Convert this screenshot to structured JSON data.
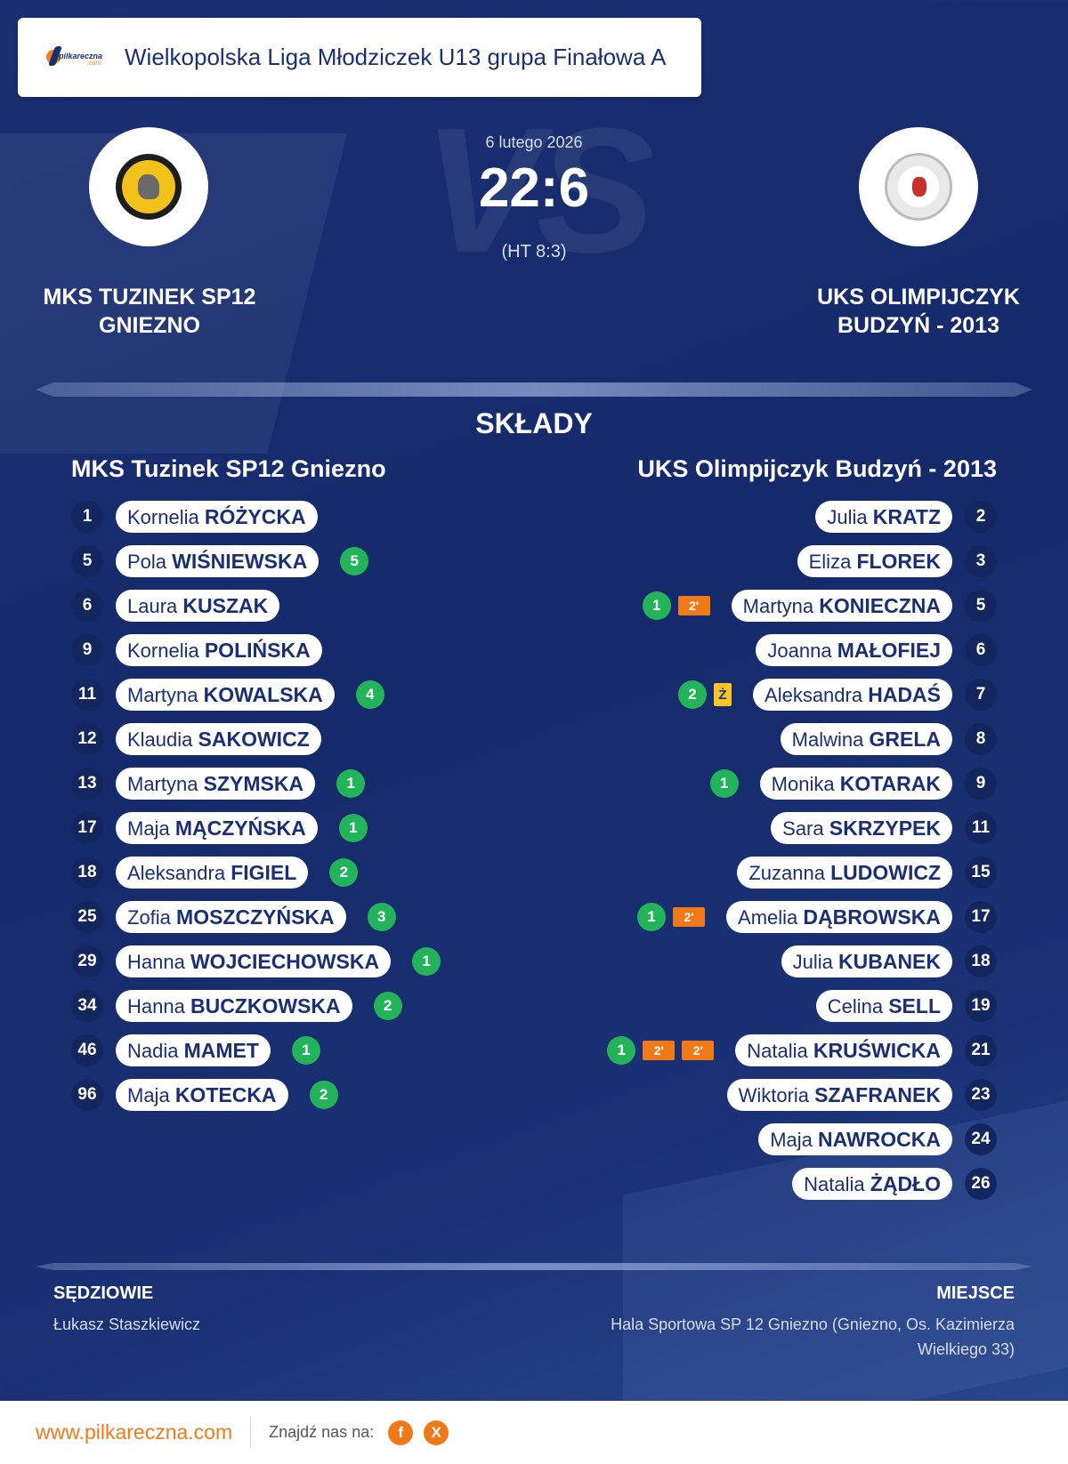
{
  "header": {
    "brand_name": "pilkareczna",
    "brand_domain": ".com",
    "league": "Wielkopolska Liga Młodziczek U13 grupa Finałowa A"
  },
  "match": {
    "date": "6 lutego 2026",
    "score": "22:6",
    "halftime": "(HT 8:3)",
    "watermark": "VS",
    "home_team": "MKS TUZINEK SP12\nGNIEZNO",
    "away_team": "UKS OLIMPIJCZYK\nBUDZYŃ - 2013"
  },
  "lineups": {
    "title": "SKŁADY",
    "home": {
      "name": "MKS Tuzinek SP12 Gniezno",
      "players": [
        {
          "number": "1",
          "first": "Kornelia",
          "last": "RÓŻYCKA",
          "goals": ""
        },
        {
          "number": "5",
          "first": "Pola",
          "last": "WIŚNIEWSKA",
          "goals": "5"
        },
        {
          "number": "6",
          "first": "Laura",
          "last": "KUSZAK",
          "goals": ""
        },
        {
          "number": "9",
          "first": "Kornelia",
          "last": "POLIŃSKA",
          "goals": ""
        },
        {
          "number": "11",
          "first": "Martyna",
          "last": "KOWALSKA",
          "goals": "4"
        },
        {
          "number": "12",
          "first": "Klaudia",
          "last": "SAKOWICZ",
          "goals": ""
        },
        {
          "number": "13",
          "first": "Martyna",
          "last": "SZYMSKA",
          "goals": "1"
        },
        {
          "number": "17",
          "first": "Maja",
          "last": "MĄCZYŃSKA",
          "goals": "1"
        },
        {
          "number": "18",
          "first": "Aleksandra",
          "last": "FIGIEL",
          "goals": "2"
        },
        {
          "number": "25",
          "first": "Zofia",
          "last": "MOSZCZYŃSKA",
          "goals": "3"
        },
        {
          "number": "29",
          "first": "Hanna",
          "last": "WOJCIECHOWSKA",
          "goals": "1"
        },
        {
          "number": "34",
          "first": "Hanna",
          "last": "BUCZKOWSKA",
          "goals": "2"
        },
        {
          "number": "46",
          "first": "Nadia",
          "last": "MAMET",
          "goals": "1"
        },
        {
          "number": "96",
          "first": "Maja",
          "last": "KOTECKA",
          "goals": "2"
        }
      ]
    },
    "away": {
      "name": "UKS Olimpijczyk Budzyń - 2013",
      "players": [
        {
          "number": "2",
          "first": "Julia",
          "last": "KRATZ",
          "goals": "",
          "cards": []
        },
        {
          "number": "3",
          "first": "Eliza",
          "last": "FLOREK",
          "goals": "",
          "cards": []
        },
        {
          "number": "5",
          "first": "Martyna",
          "last": "KONIECZNA",
          "goals": "1",
          "cards": [
            "2'"
          ]
        },
        {
          "number": "6",
          "first": "Joanna",
          "last": "MAŁOFIEJ",
          "goals": "",
          "cards": []
        },
        {
          "number": "7",
          "first": "Aleksandra",
          "last": "HADAŚ",
          "goals": "2",
          "cards": [
            "Ż"
          ]
        },
        {
          "number": "8",
          "first": "Malwina",
          "last": "GRELA",
          "goals": "",
          "cards": []
        },
        {
          "number": "9",
          "first": "Monika",
          "last": "KOTARAK",
          "goals": "1",
          "cards": []
        },
        {
          "number": "11",
          "first": "Sara",
          "last": "SKRZYPEK",
          "goals": "",
          "cards": []
        },
        {
          "number": "15",
          "first": "Zuzanna",
          "last": "LUDOWICZ",
          "goals": "",
          "cards": []
        },
        {
          "number": "17",
          "first": "Amelia",
          "last": "DĄBROWSKA",
          "goals": "1",
          "cards": [
            "2'"
          ]
        },
        {
          "number": "18",
          "first": "Julia",
          "last": "KUBANEK",
          "goals": "",
          "cards": []
        },
        {
          "number": "19",
          "first": "Celina",
          "last": "SELL",
          "goals": "",
          "cards": []
        },
        {
          "number": "21",
          "first": "Natalia",
          "last": "KRUŚWICKA",
          "goals": "1",
          "cards": [
            "2'",
            "2'"
          ]
        },
        {
          "number": "23",
          "first": "Wiktoria",
          "last": "SZAFRANEK",
          "goals": "",
          "cards": []
        },
        {
          "number": "24",
          "first": "Maja",
          "last": "NAWROCKA",
          "goals": "",
          "cards": []
        },
        {
          "number": "26",
          "first": "Natalia",
          "last": "ŻĄDŁO",
          "goals": "",
          "cards": []
        }
      ]
    }
  },
  "referees": {
    "label": "SĘDZIOWIE",
    "names": "Łukasz Staszkiewicz"
  },
  "venue": {
    "label": "MIEJSCE",
    "text": "Hala Sportowa SP 12 Gniezno (Gniezno, Os. Kazimierza Wielkiego 33)"
  },
  "footer": {
    "url": "www.pilkareczna.com",
    "find_us": "Znajdź nas na:",
    "social": [
      "f",
      "X"
    ]
  },
  "colors": {
    "background": "#1b2f73",
    "goal_badge": "#23b35a",
    "penalty_badge": "#f07a1a",
    "yellow_card": "#f7c42a",
    "accent": "#f07a1a"
  }
}
